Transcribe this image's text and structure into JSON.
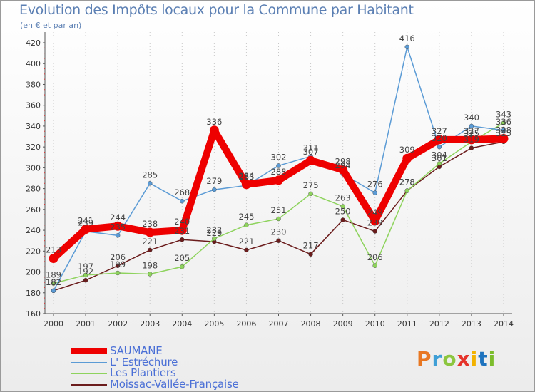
{
  "title": "Evolution des Impôts locaux pour la Commune par Habitant",
  "subtitle": "(en € et par an)",
  "logo": "Proxiti",
  "logo_colors": [
    "#e87722",
    "#3f9fd6",
    "#8cc63f",
    "#e5332a",
    "#f2b200",
    "#1e73be",
    "#7cbd2c"
  ],
  "chart_data": {
    "type": "line",
    "title": "Evolution des Impôts locaux pour la Commune par Habitant",
    "ylabel": "(en € et par an)",
    "xlabel": "",
    "x": [
      "2000",
      "2001",
      "2002",
      "2003",
      "2004",
      "2005",
      "2006",
      "2007",
      "2008",
      "2009",
      "2010",
      "2011",
      "2012",
      "2013",
      "2014"
    ],
    "ylim": [
      160,
      420
    ],
    "yticks": [
      160,
      180,
      200,
      220,
      240,
      260,
      280,
      300,
      320,
      340,
      360,
      380,
      400,
      420
    ],
    "grid": "vertical-dotted",
    "legend_position": "bottom-left",
    "series": [
      {
        "name": "SAUMANE",
        "color": "#ee0000",
        "values": [
          213,
          241,
          244,
          238,
          240,
          336,
          284,
          288,
          307,
          298,
          249,
          309,
          327,
          327,
          328
        ],
        "labels": [
          "213",
          "241",
          "244",
          "238",
          "240",
          "336",
          "284",
          "288",
          "307",
          "298",
          "249",
          "309",
          "327",
          "327",
          "328"
        ]
      },
      {
        "name": "L' Estréchure",
        "color": "#5b9bd5",
        "values": [
          182,
          239,
          235,
          285,
          268,
          279,
          283,
          302,
          311,
          294,
          276,
          416,
          320,
          340,
          336
        ],
        "labels": [
          "182",
          "239",
          "235",
          "285",
          "268",
          "279",
          "283",
          "302",
          "311",
          "294",
          "276",
          "416",
          "320",
          "340",
          "336"
        ]
      },
      {
        "name": "Les Plantiers",
        "color": "#8ed35d",
        "values": [
          189,
          197,
          199,
          198,
          205,
          232,
          245,
          251,
          275,
          263,
          206,
          278,
          304,
          325,
          343
        ],
        "labels": [
          "189",
          "197",
          "199",
          "198",
          "205",
          "232",
          "245",
          "251",
          "275",
          "263",
          "206",
          "278",
          "304",
          "325",
          "343"
        ]
      },
      {
        "name": "Moissac-Vallée-Française",
        "color": "#6b1c1c",
        "values": [
          182,
          192,
          206,
          221,
          231,
          229,
          221,
          230,
          217,
          250,
          239,
          278,
          301,
          319,
          325
        ],
        "labels": [
          "182",
          "192",
          "206",
          "221",
          "231",
          "229",
          "221",
          "230",
          "217",
          "250",
          "239",
          "278",
          "301",
          "319",
          "325"
        ]
      }
    ]
  }
}
